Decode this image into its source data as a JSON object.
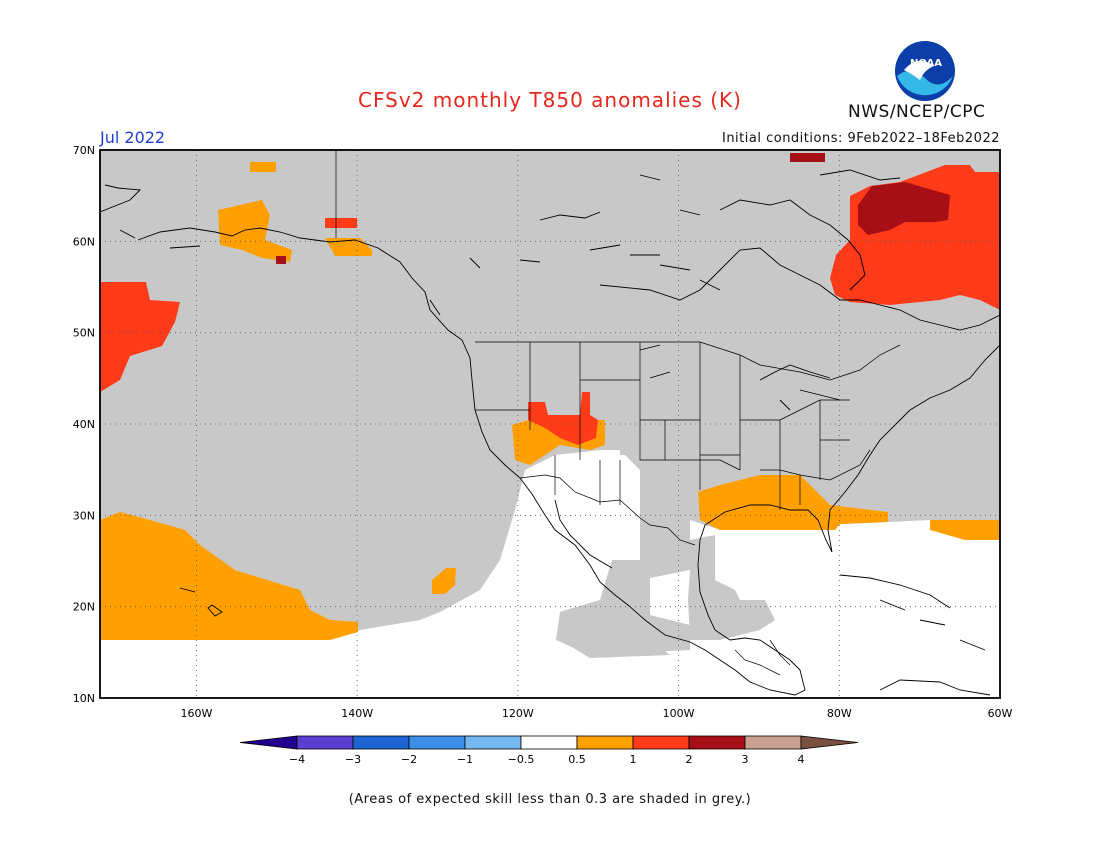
{
  "header": {
    "title": "CFSv2 monthly T850 anomalies (K)",
    "month": "Jul 2022",
    "initial_conditions": "Initial conditions: 9Feb2022–18Feb2022",
    "agency": "NWS/NCEP/CPC",
    "logo_text": "NOAA"
  },
  "map": {
    "lon_range": [
      -172,
      -60
    ],
    "lat_range": [
      10,
      70
    ],
    "lat_labels": [
      "10N",
      "20N",
      "30N",
      "40N",
      "50N",
      "60N",
      "70N"
    ],
    "lon_labels": [
      "160W",
      "140W",
      "120W",
      "100W",
      "80W",
      "60W"
    ],
    "lat_values": [
      10,
      20,
      30,
      40,
      50,
      60,
      70
    ],
    "lon_values": [
      -160,
      -140,
      -120,
      -100,
      -80,
      -60
    ],
    "colors": {
      "grey_skill": "#c8c8c8",
      "neutral": "#ffffff",
      "c_0_5_1": "#ffa000",
      "c_1_2": "#ff3b1a",
      "c_2_3": "#a50f15",
      "coast": "#000000"
    }
  },
  "colorbar": {
    "labels": [
      "−4",
      "−3",
      "−2",
      "−1",
      "−0.5",
      "0.5",
      "1",
      "2",
      "3",
      "4"
    ],
    "colors": [
      "#20008c",
      "#5a3fd0",
      "#1c64d2",
      "#3c8fe6",
      "#78b8f0",
      "#ffffff",
      "#ffa000",
      "#ff3b1a",
      "#a50f15",
      "#c8a090",
      "#7a5040"
    ]
  },
  "footnote": "(Areas of expected skill less than 0.3 are shaded in grey.)"
}
